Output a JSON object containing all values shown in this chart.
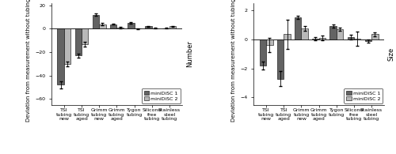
{
  "categories": [
    "TSI\ntubing\nnew",
    "TSI\ntubing\naged",
    "Grimm\ntubing\nnew",
    "Grimm\ntubing\naged",
    "Tygon\ntubing",
    "Silicone\nfree\ntubing",
    "Stainless\nsteel\ntubing"
  ],
  "number_d1": [
    -48,
    -23,
    12,
    4,
    5,
    2,
    0.5
  ],
  "number_d2": [
    -30,
    -13,
    4,
    1,
    0,
    0.5,
    2
  ],
  "number_err_d1": [
    3,
    2,
    1,
    0.5,
    0.5,
    0.5,
    0.5
  ],
  "number_err_d2": [
    2,
    2,
    1,
    0.5,
    0.5,
    0.5,
    0.5
  ],
  "size_d1": [
    -1.8,
    -2.7,
    1.5,
    0.05,
    0.9,
    0.15,
    -0.1
  ],
  "size_d2": [
    -0.4,
    0.35,
    0.75,
    0.1,
    0.7,
    0.05,
    0.35
  ],
  "size_err_d1": [
    0.25,
    0.5,
    0.1,
    0.1,
    0.1,
    0.15,
    0.1
  ],
  "size_err_d2": [
    0.5,
    1.0,
    0.15,
    0.15,
    0.1,
    0.5,
    0.15
  ],
  "color_d1": "#636363",
  "color_d2": "#b8b8b8",
  "number_ylim": [
    -65,
    22
  ],
  "number_yticks": [
    -60,
    -40,
    -20,
    0,
    20
  ],
  "size_ylim": [
    -4.5,
    2.5
  ],
  "size_yticks": [
    -4,
    -2,
    0,
    2
  ],
  "legend_labels": [
    "miniDiSC 1",
    "miniDiSC 2"
  ],
  "ylabel_number": "Deviation from measurement without tubing [%]",
  "ylabel_size": "Deviation from measurement without tubing [%]",
  "rotlabel_number": "Number",
  "rotlabel_size": "Size",
  "bar_width": 0.38,
  "tick_fontsize": 4.5,
  "ylabel_fontsize": 5,
  "legend_fontsize": 4.5
}
